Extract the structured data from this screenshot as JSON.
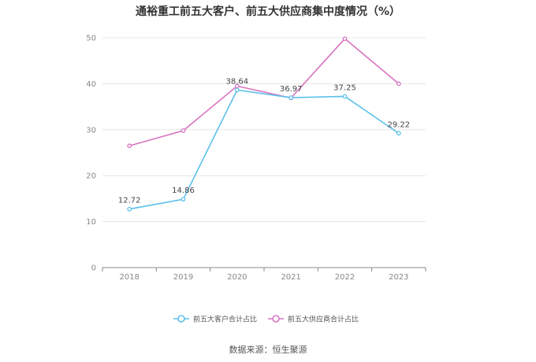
{
  "chart_data": {
    "type": "line",
    "title": "通裕重工前五大客户、前五大供应商集中度情况（%）",
    "categories": [
      "2018",
      "2019",
      "2020",
      "2021",
      "2022",
      "2023"
    ],
    "series": [
      {
        "name": "前五大客户合计占比",
        "color": "#5bc0eb",
        "values": [
          12.72,
          14.86,
          38.64,
          36.97,
          37.25,
          29.22
        ],
        "show_labels": true
      },
      {
        "name": "前五大供应商合计占比",
        "color": "#d874c2",
        "values": [
          26.5,
          29.8,
          39.5,
          36.9,
          49.8,
          40.0
        ],
        "show_labels": false
      }
    ],
    "ylim": [
      0,
      50
    ],
    "yticks": [
      "0",
      "10",
      "20",
      "30",
      "40",
      "50"
    ],
    "grid": true,
    "legend_position": "bottom"
  },
  "source": "数据来源：恒生聚源"
}
